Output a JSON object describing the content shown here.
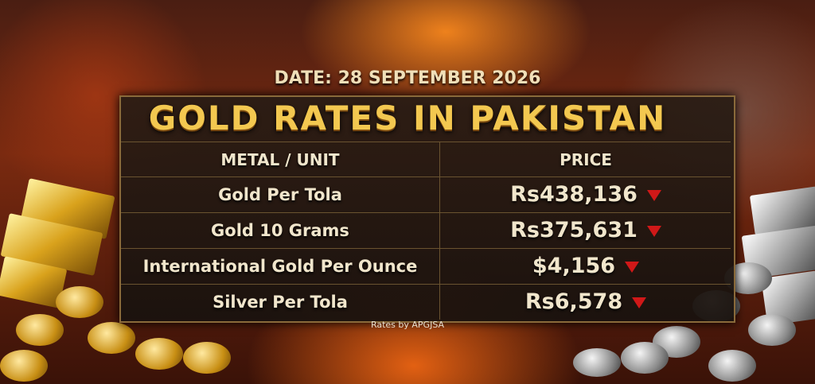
{
  "date": "DATE: 28 SEPTEMBER 2026",
  "title": "GOLD RATES IN PAKISTAN",
  "table": {
    "header": [
      "METAL / UNIT",
      "PRICE"
    ],
    "rows": [
      [
        "Gold Per Tola",
        "Rs438,136"
      ],
      [
        "Gold 10 Grams",
        "Rs375,631"
      ],
      [
        "International Gold Per Ounce",
        "$4,156"
      ],
      [
        "Silver Per Tola",
        "Rs6,578"
      ]
    ]
  },
  "footer": "Rates by APGJSA"
}
